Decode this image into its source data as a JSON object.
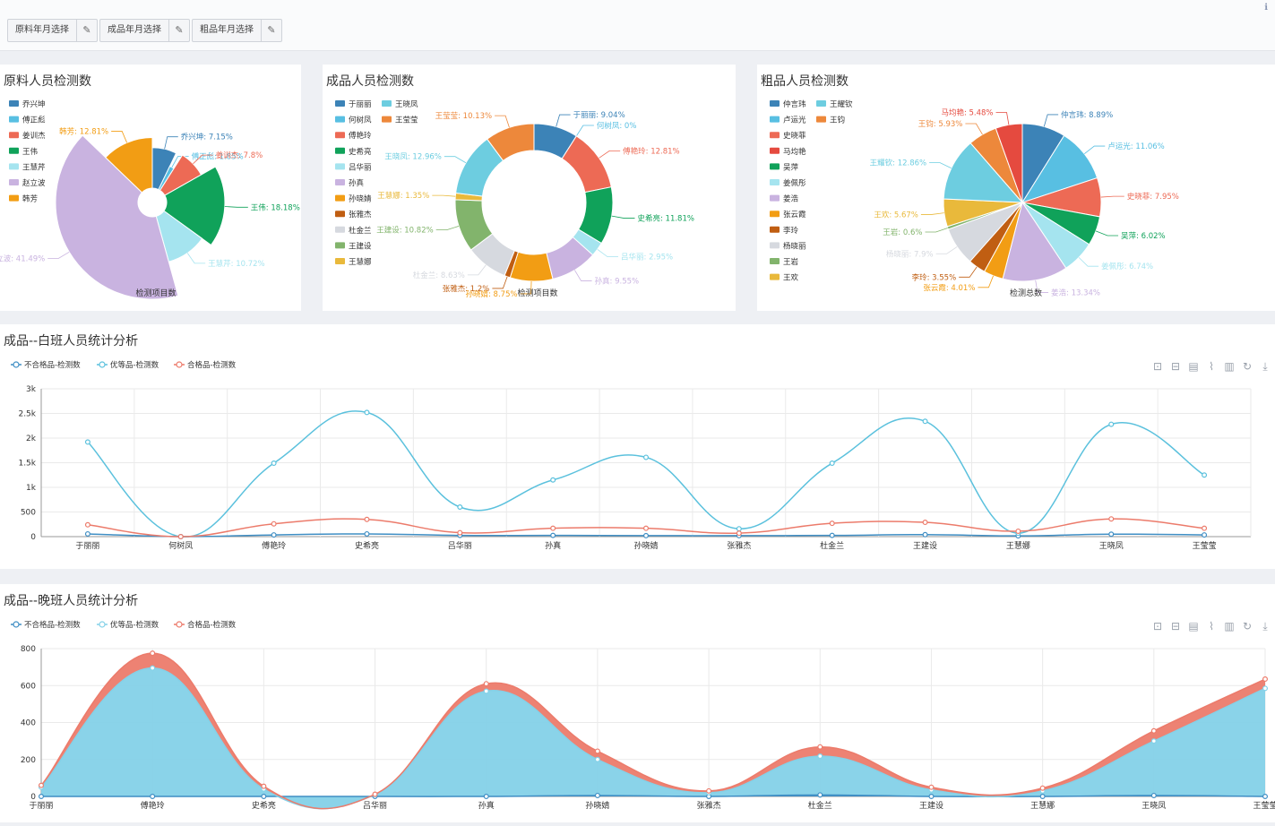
{
  "toolbar": {
    "buttons": [
      {
        "label": "原料年月选择",
        "icon": "edit-icon"
      },
      {
        "label": "成品年月选择",
        "icon": "edit-icon"
      },
      {
        "label": "粗品年月选择",
        "icon": "edit-icon"
      }
    ],
    "info_icon": "info-icon"
  },
  "panels": {
    "raw_title": "原料人员检测数",
    "finished_title": "成品人员检测数",
    "crude_title": "粗品人员检测数",
    "day_title": "成品--白班人员统计分析",
    "night_title": "成品--晚班人员统计分析"
  },
  "toolbox_icons": [
    "zoom-icon",
    "zoom-reset-icon",
    "data-view-icon",
    "line-type-icon",
    "bar-type-icon",
    "restore-icon",
    "save-image-icon"
  ],
  "chart_data": [
    {
      "id": "raw",
      "type": "pie",
      "variant": "rose",
      "title": "检测项目数",
      "legend": [
        "乔兴坤",
        "傅正彪",
        "姜训杰",
        "王伟",
        "王慧芹",
        "赵立波",
        "韩芳"
      ],
      "slices": [
        {
          "name": "乔兴坤",
          "label": "乔兴坤: 7.15%",
          "value": 7.15,
          "color": "#3c83b7"
        },
        {
          "name": "傅正彪",
          "label": "傅正彪: 1.85%",
          "value": 1.85,
          "color": "#58bfe2"
        },
        {
          "name": "姜训杰",
          "label": "姜训杰: 7.8%",
          "value": 7.8,
          "color": "#ed6a55"
        },
        {
          "name": "王伟",
          "label": "王伟: 18.18%",
          "value": 18.18,
          "color": "#10a25a"
        },
        {
          "name": "王慧芹",
          "label": "王慧芹: 10.72%",
          "value": 10.72,
          "color": "#a5e4ef"
        },
        {
          "name": "赵立波",
          "label": "赵立波: 41.49%",
          "value": 41.49,
          "color": "#c9b3e0"
        },
        {
          "name": "韩芳",
          "label": "韩芳: 12.81%",
          "value": 12.81,
          "color": "#f29d14"
        }
      ]
    },
    {
      "id": "finished",
      "type": "pie",
      "variant": "donut",
      "title": "检测项目数",
      "legend": [
        "于丽丽",
        "王晓凤",
        "何树凤",
        "王莹莹",
        "傅艳玲",
        "史希亮",
        "吕华丽",
        "孙真",
        "孙晓婧",
        "张雅杰",
        "杜金兰",
        "王建设",
        "王慧娜"
      ],
      "slices": [
        {
          "name": "于丽丽",
          "label": "于丽丽: 9.04%",
          "value": 9.04,
          "color": "#3c83b7"
        },
        {
          "name": "何树凤",
          "label": "何树凤: 0%",
          "value": 0,
          "color": "#58bfe2"
        },
        {
          "name": "傅艳玲",
          "label": "傅艳玲: 12.81%",
          "value": 12.81,
          "color": "#ed6a55"
        },
        {
          "name": "史希亮",
          "label": "史希亮: 11.81%",
          "value": 11.81,
          "color": "#10a25a"
        },
        {
          "name": "吕华丽",
          "label": "吕华丽: 2.95%",
          "value": 2.95,
          "color": "#a5e4ef"
        },
        {
          "name": "孙真",
          "label": "孙真: 9.55%",
          "value": 9.55,
          "color": "#c9b3e0"
        },
        {
          "name": "孙晓婧",
          "label": "孙晓婧: 8.75%",
          "value": 8.75,
          "color": "#f29d14"
        },
        {
          "name": "张雅杰",
          "label": "张雅杰: 1.2%",
          "value": 1.2,
          "color": "#c05e12"
        },
        {
          "name": "杜金兰",
          "label": "杜金兰: 8.63%",
          "value": 8.63,
          "color": "#d6d9df"
        },
        {
          "name": "王建设",
          "label": "王建设: 10.82%",
          "value": 10.82,
          "color": "#82b46c"
        },
        {
          "name": "王慧娜",
          "label": "王慧娜: 1.35%",
          "value": 1.35,
          "color": "#e9b93b"
        },
        {
          "name": "王晓凤",
          "label": "王晓凤: 12.96%",
          "value": 12.96,
          "color": "#6dcde0"
        },
        {
          "name": "王莹莹",
          "label": "王莹莹: 10.13%",
          "value": 10.13,
          "color": "#ed883b"
        }
      ]
    },
    {
      "id": "crude",
      "type": "pie",
      "variant": "pie",
      "title": "检测总数",
      "legend": [
        "仲言玮",
        "王耀钦",
        "卢运光",
        "王钧",
        "史晓菲",
        "马均艳",
        "吴萍",
        "姜佩彤",
        "姜浩",
        "张云霞",
        "李玲",
        "杨晓丽",
        "王岩",
        "王欢"
      ],
      "slices": [
        {
          "name": "仲言玮",
          "label": "仲言玮: 8.89%",
          "value": 8.89,
          "color": "#3c83b7"
        },
        {
          "name": "卢运光",
          "label": "卢运光: 11.06%",
          "value": 11.06,
          "color": "#58bfe2"
        },
        {
          "name": "史晓菲",
          "label": "史晓菲: 7.95%",
          "value": 7.95,
          "color": "#ed6a55"
        },
        {
          "name": "吴萍",
          "label": "吴萍: 6.02%",
          "value": 6.02,
          "color": "#10a25a"
        },
        {
          "name": "姜佩彤",
          "label": "姜佩彤: 6.74%",
          "value": 6.74,
          "color": "#a5e4ef"
        },
        {
          "name": "姜浩",
          "label": "姜浩: 13.34%",
          "value": 13.34,
          "color": "#c9b3e0"
        },
        {
          "name": "张云霞",
          "label": "张云霞: 4.01%",
          "value": 4.01,
          "color": "#f29d14"
        },
        {
          "name": "李玲",
          "label": "李玲: 3.55%",
          "value": 3.55,
          "color": "#c05e12"
        },
        {
          "name": "杨晓丽",
          "label": "杨晓丽: 7.9%",
          "value": 7.9,
          "color": "#d6d9df"
        },
        {
          "name": "王岩",
          "label": "王岩: 0.6%",
          "value": 0.6,
          "color": "#82b46c"
        },
        {
          "name": "王欢",
          "label": "王欢: 5.67%",
          "value": 5.67,
          "color": "#e9b93b"
        },
        {
          "name": "王耀钦",
          "label": "王耀钦: 12.86%",
          "value": 12.86,
          "color": "#6dcde0"
        },
        {
          "name": "王钧",
          "label": "王钧: 5.93%",
          "value": 5.93,
          "color": "#ed883b"
        },
        {
          "name": "马均艳",
          "label": "马均艳: 5.48%",
          "value": 5.48,
          "color": "#e54a3f"
        }
      ]
    },
    {
      "id": "day",
      "type": "line",
      "smooth": true,
      "legend": [
        "不合格品-检测数",
        "优等品-检测数",
        "合格品-检测数"
      ],
      "categories": [
        "于丽丽",
        "何树凤",
        "傅艳玲",
        "史希亮",
        "吕华丽",
        "孙真",
        "孙晓婧",
        "张雅杰",
        "杜金兰",
        "王建设",
        "王慧娜",
        "王晓凤",
        "王莹莹"
      ],
      "ylim": [
        0,
        3000
      ],
      "yticks": [
        "0",
        "500",
        "1k",
        "1.5k",
        "2k",
        "2.5k",
        "3k"
      ],
      "series": [
        {
          "name": "不合格品-检测数",
          "color": "#3f8ec4",
          "values": [
            55,
            0,
            35,
            55,
            25,
            25,
            20,
            20,
            25,
            40,
            15,
            50,
            35
          ]
        },
        {
          "name": "优等品-检测数",
          "color": "#5bc1dd",
          "values": [
            1920,
            0,
            1490,
            2520,
            600,
            1150,
            1610,
            160,
            1490,
            2340,
            70,
            2280,
            1250
          ]
        },
        {
          "name": "合格品-检测数",
          "color": "#ec7b6b",
          "values": [
            240,
            0,
            260,
            350,
            80,
            170,
            170,
            70,
            270,
            290,
            110,
            360,
            170
          ]
        }
      ]
    },
    {
      "id": "night",
      "type": "area",
      "smooth": true,
      "stacked": true,
      "legend": [
        "不合格品-检测数",
        "优等品-检测数",
        "合格品-检测数"
      ],
      "categories": [
        "于丽丽",
        "傅艳玲",
        "史希亮",
        "吕华丽",
        "孙真",
        "孙晓婧",
        "张雅杰",
        "杜金兰",
        "王建设",
        "王慧娜",
        "王晓凤",
        "王莹莹"
      ],
      "ylim": [
        0,
        800
      ],
      "yticks": [
        "0",
        "200",
        "400",
        "600",
        "800"
      ],
      "series": [
        {
          "name": "不合格品-检测数",
          "color": "#3f8ec4",
          "values": [
            0,
            0,
            0,
            0,
            0,
            5,
            0,
            8,
            0,
            0,
            5,
            0
          ]
        },
        {
          "name": "优等品-检测数",
          "color": "#84d1e8",
          "values": [
            50,
            695,
            40,
            10,
            570,
            195,
            20,
            210,
            35,
            30,
            295,
            585
          ]
        },
        {
          "name": "合格品-检测数",
          "color": "#ec7b6b",
          "values": [
            10,
            80,
            15,
            2,
            40,
            45,
            10,
            50,
            15,
            15,
            55,
            50
          ]
        }
      ]
    }
  ]
}
